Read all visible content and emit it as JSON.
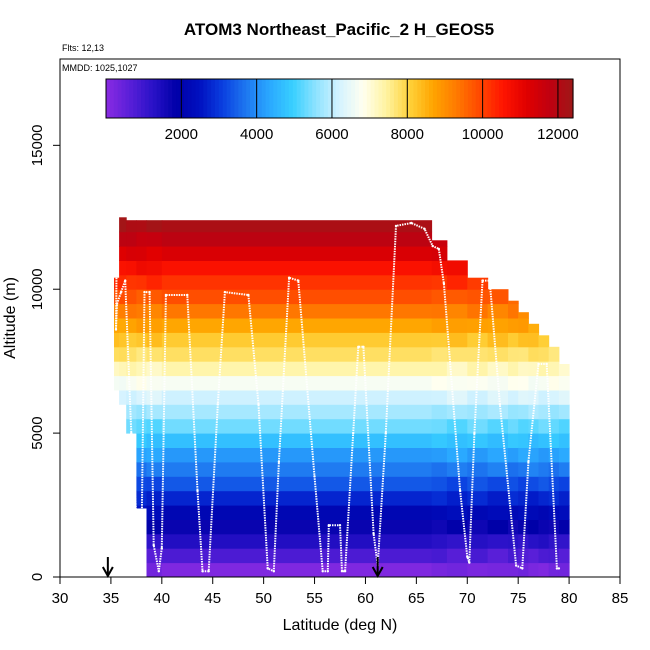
{
  "chart_data": {
    "type": "heatmap",
    "title": "ATOM3 Northeast_Pacific_2 H_GEOS5",
    "flights_label": "Flts: 12,13",
    "dates_label": "MMDD: 1025,1027",
    "xlabel": "Latitude (deg N)",
    "ylabel": "Altitude (m)",
    "xlim": [
      30,
      85
    ],
    "ylim": [
      0,
      18000
    ],
    "x_ticks": [
      30,
      35,
      40,
      45,
      50,
      55,
      60,
      65,
      70,
      75,
      80,
      85
    ],
    "y_ticks": [
      0,
      5000,
      10000,
      15000
    ],
    "colorbar": {
      "range": [
        0,
        12400
      ],
      "ticks": [
        2000,
        4000,
        6000,
        8000,
        10000,
        12000
      ],
      "colors": [
        "#8a2be2",
        "#5a1fd8",
        "#2a12c8",
        "#0000a8",
        "#0010c0",
        "#0a3fe0",
        "#1e78f0",
        "#2aa8ff",
        "#38cfff",
        "#8fe3ff",
        "#d5f3ff",
        "#fffff0",
        "#fff3a0",
        "#ffd23a",
        "#ffa500",
        "#ff7a00",
        "#ff4800",
        "#ff1500",
        "#e00000",
        "#c00010",
        "#9e1818"
      ]
    },
    "curtain": {
      "bands_m": 500,
      "columns": [
        {
          "lat_start": 35.3,
          "lat_end": 35.8,
          "alt_min": 6500,
          "alt_max": 10400
        },
        {
          "lat_start": 35.8,
          "lat_end": 36.5,
          "alt_min": 6000,
          "alt_max": 12500
        },
        {
          "lat_start": 36.5,
          "lat_end": 37.5,
          "alt_min": 5000,
          "alt_max": 12400
        },
        {
          "lat_start": 37.5,
          "lat_end": 38.5,
          "alt_min": 2400,
          "alt_max": 12400
        },
        {
          "lat_start": 38.5,
          "lat_end": 40.0,
          "alt_min": 0,
          "alt_max": 12400
        },
        {
          "lat_start": 40.0,
          "lat_end": 66.5,
          "alt_min": 0,
          "alt_max": 12400
        },
        {
          "lat_start": 66.5,
          "lat_end": 68.0,
          "alt_min": 0,
          "alt_max": 11700
        },
        {
          "lat_start": 68.0,
          "lat_end": 70.0,
          "alt_min": 0,
          "alt_max": 11000
        },
        {
          "lat_start": 70.0,
          "lat_end": 72.0,
          "alt_min": 0,
          "alt_max": 10400
        },
        {
          "lat_start": 72.0,
          "lat_end": 74.0,
          "alt_min": 0,
          "alt_max": 10000
        },
        {
          "lat_start": 74.0,
          "lat_end": 75.0,
          "alt_min": 0,
          "alt_max": 9600
        },
        {
          "lat_start": 75.0,
          "lat_end": 76.0,
          "alt_min": 0,
          "alt_max": 9200
        },
        {
          "lat_start": 76.0,
          "lat_end": 77.0,
          "alt_min": 0,
          "alt_max": 8800
        },
        {
          "lat_start": 77.0,
          "lat_end": 78.0,
          "alt_min": 0,
          "alt_max": 8400
        },
        {
          "lat_start": 78.0,
          "lat_end": 79.0,
          "alt_min": 0,
          "alt_max": 8000
        },
        {
          "lat_start": 79.0,
          "lat_end": 80.0,
          "alt_min": 0,
          "alt_max": 7400
        }
      ]
    },
    "flight_track": [
      [
        35.6,
        12400
      ],
      [
        35.5,
        8600
      ],
      [
        35.6,
        9500
      ],
      [
        36.0,
        9900
      ],
      [
        36.4,
        10300
      ],
      [
        37.0,
        5000
      ],
      [
        37.6,
        1500
      ],
      [
        38.0,
        1100
      ],
      [
        38.3,
        9900
      ],
      [
        38.8,
        9900
      ],
      [
        39.2,
        1100
      ],
      [
        39.7,
        200
      ],
      [
        40.0,
        1000
      ],
      [
        40.4,
        9800
      ],
      [
        42.5,
        9800
      ],
      [
        43.5,
        3000
      ],
      [
        44.0,
        200
      ],
      [
        44.6,
        200
      ],
      [
        45.5,
        6000
      ],
      [
        46.2,
        9900
      ],
      [
        48.5,
        9800
      ],
      [
        49.5,
        6000
      ],
      [
        50.4,
        300
      ],
      [
        51.0,
        200
      ],
      [
        51.5,
        4000
      ],
      [
        52.5,
        10400
      ],
      [
        53.4,
        10300
      ],
      [
        55.0,
        3500
      ],
      [
        55.8,
        200
      ],
      [
        56.3,
        200
      ],
      [
        56.4,
        1800
      ],
      [
        57.5,
        1800
      ],
      [
        57.7,
        200
      ],
      [
        58.0,
        200
      ],
      [
        58.8,
        5000
      ],
      [
        59.3,
        8000
      ],
      [
        59.8,
        8000
      ],
      [
        60.8,
        1500
      ],
      [
        61.2,
        400
      ],
      [
        62.0,
        5000
      ],
      [
        63.0,
        12200
      ],
      [
        64.5,
        12300
      ],
      [
        65.8,
        12100
      ],
      [
        66.6,
        11500
      ],
      [
        67.2,
        11400
      ],
      [
        67.7,
        10200
      ],
      [
        69.3,
        3000
      ],
      [
        70.0,
        700
      ],
      [
        70.2,
        500
      ],
      [
        70.7,
        5000
      ],
      [
        71.5,
        10300
      ],
      [
        72.2,
        10300
      ],
      [
        73.2,
        6000
      ],
      [
        74.8,
        400
      ],
      [
        75.4,
        300
      ],
      [
        76.0,
        4000
      ],
      [
        77.0,
        7400
      ],
      [
        77.8,
        7400
      ],
      [
        78.8,
        300
      ],
      [
        79.0,
        300
      ]
    ],
    "arrows_lat": [
      34.7,
      61.2
    ]
  }
}
